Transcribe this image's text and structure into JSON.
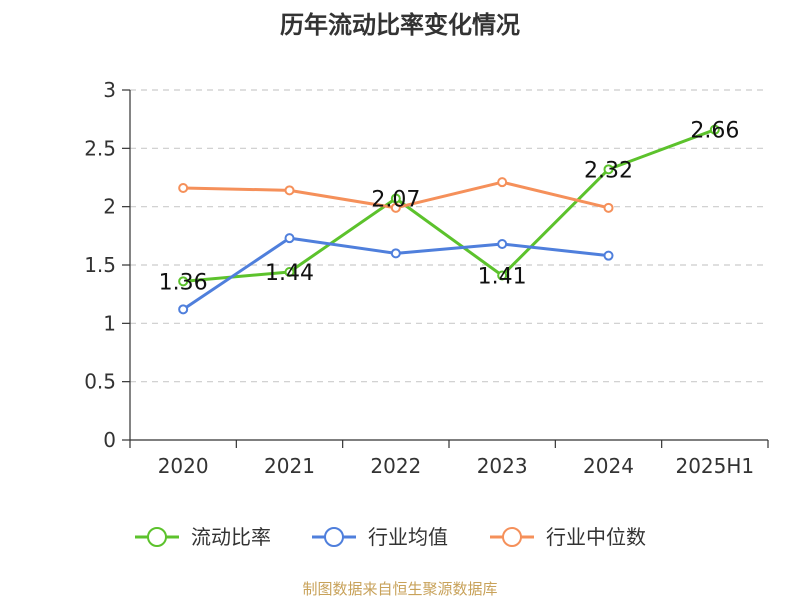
{
  "chart_data": {
    "type": "line",
    "title": "历年流动比率变化情况",
    "categories": [
      "2020",
      "2021",
      "2022",
      "2023",
      "2024",
      "2025H1"
    ],
    "ylim": [
      0,
      3
    ],
    "yticks": [
      "0",
      "0.5",
      "1",
      "1.5",
      "2",
      "2.5",
      "3"
    ],
    "grid": true,
    "legend_position": "bottom",
    "series": [
      {
        "name": "流动比率",
        "color": "#5cc22c",
        "values": [
          1.36,
          1.44,
          2.07,
          1.41,
          2.32,
          2.66
        ],
        "data_labels": [
          "1.36",
          "1.44",
          "2.07",
          "1.41",
          "2.32",
          "2.66"
        ]
      },
      {
        "name": "行业均值",
        "color": "#4f7fdc",
        "values": [
          1.12,
          1.73,
          1.6,
          1.68,
          1.58,
          null
        ]
      },
      {
        "name": "行业中位数",
        "color": "#f5905a",
        "values": [
          2.16,
          2.14,
          1.99,
          2.21,
          1.99,
          null
        ]
      }
    ]
  },
  "source": "制图数据来自恒生聚源数据库"
}
